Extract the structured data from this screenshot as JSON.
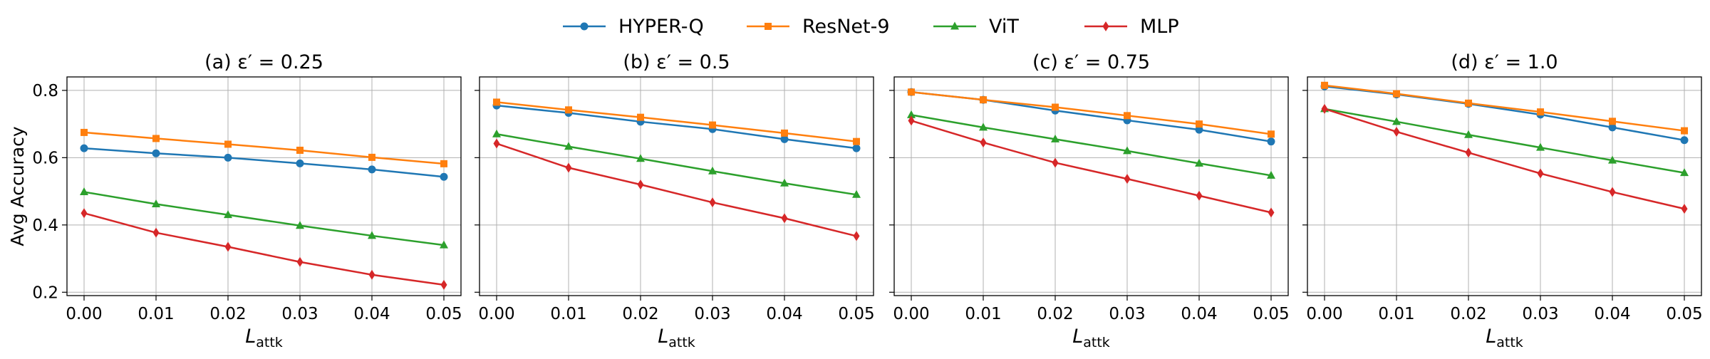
{
  "legend": [
    {
      "name": "HYPER-Q",
      "color": "#1f77b4",
      "marker": "circle"
    },
    {
      "name": "ResNet-9",
      "color": "#ff7f0e",
      "marker": "square"
    },
    {
      "name": "ViT",
      "color": "#2ca02c",
      "marker": "triangle"
    },
    {
      "name": "MLP",
      "color": "#d62728",
      "marker": "diamond"
    }
  ],
  "chart_data": [
    {
      "type": "line",
      "title": "(a) ε′ = 0.25",
      "xlabel": "L_attk",
      "ylabel": "Avg Accuracy",
      "x": [
        0.0,
        0.01,
        0.02,
        0.03,
        0.04,
        0.05
      ],
      "xticks": [
        "0.00",
        "0.01",
        "0.02",
        "0.03",
        "0.04",
        "0.05"
      ],
      "ylim": [
        0.19,
        0.84
      ],
      "yticks": [
        "0.2",
        "0.4",
        "0.6",
        "0.8"
      ],
      "grid": true,
      "series": [
        {
          "name": "HYPER-Q",
          "values": [
            0.628,
            0.613,
            0.6,
            0.583,
            0.565,
            0.543
          ]
        },
        {
          "name": "ResNet-9",
          "values": [
            0.675,
            0.657,
            0.64,
            0.622,
            0.601,
            0.582
          ]
        },
        {
          "name": "ViT",
          "values": [
            0.498,
            0.462,
            0.43,
            0.398,
            0.368,
            0.34
          ]
        },
        {
          "name": "MLP",
          "values": [
            0.435,
            0.377,
            0.335,
            0.29,
            0.252,
            0.222
          ]
        }
      ]
    },
    {
      "type": "line",
      "title": "(b) ε′ = 0.5",
      "xlabel": "L_attk",
      "ylabel": "",
      "x": [
        0.0,
        0.01,
        0.02,
        0.03,
        0.04,
        0.05
      ],
      "xticks": [
        "0.00",
        "0.01",
        "0.02",
        "0.03",
        "0.04",
        "0.05"
      ],
      "ylim": [
        0.19,
        0.84
      ],
      "yticks": [
        "0.2",
        "0.4",
        "0.6",
        "0.8"
      ],
      "grid": true,
      "series": [
        {
          "name": "HYPER-Q",
          "values": [
            0.755,
            0.733,
            0.707,
            0.685,
            0.655,
            0.628
          ]
        },
        {
          "name": "ResNet-9",
          "values": [
            0.765,
            0.742,
            0.72,
            0.697,
            0.673,
            0.648
          ]
        },
        {
          "name": "ViT",
          "values": [
            0.67,
            0.633,
            0.597,
            0.56,
            0.524,
            0.49
          ]
        },
        {
          "name": "MLP",
          "values": [
            0.642,
            0.57,
            0.52,
            0.467,
            0.42,
            0.367
          ]
        }
      ]
    },
    {
      "type": "line",
      "title": "(c) ε′ = 0.75",
      "xlabel": "L_attk",
      "ylabel": "",
      "x": [
        0.0,
        0.01,
        0.02,
        0.03,
        0.04,
        0.05
      ],
      "xticks": [
        "0.00",
        "0.01",
        "0.02",
        "0.03",
        "0.04",
        "0.05"
      ],
      "ylim": [
        0.19,
        0.84
      ],
      "yticks": [
        "0.2",
        "0.4",
        "0.6",
        "0.8"
      ],
      "grid": true,
      "series": [
        {
          "name": "HYPER-Q",
          "values": [
            0.795,
            0.772,
            0.74,
            0.711,
            0.683,
            0.648
          ]
        },
        {
          "name": "ResNet-9",
          "values": [
            0.795,
            0.772,
            0.75,
            0.725,
            0.7,
            0.67
          ]
        },
        {
          "name": "ViT",
          "values": [
            0.727,
            0.69,
            0.655,
            0.62,
            0.583,
            0.547
          ]
        },
        {
          "name": "MLP",
          "values": [
            0.71,
            0.645,
            0.585,
            0.537,
            0.487,
            0.437
          ]
        }
      ]
    },
    {
      "type": "line",
      "title": "(d) ε′ = 1.0",
      "xlabel": "L_attk",
      "ylabel": "",
      "x": [
        0.0,
        0.01,
        0.02,
        0.03,
        0.04,
        0.05
      ],
      "xticks": [
        "0.00",
        "0.01",
        "0.02",
        "0.03",
        "0.04",
        "0.05"
      ],
      "ylim": [
        0.19,
        0.84
      ],
      "yticks": [
        "0.2",
        "0.4",
        "0.6",
        "0.8"
      ],
      "grid": true,
      "series": [
        {
          "name": "HYPER-Q",
          "values": [
            0.812,
            0.788,
            0.76,
            0.728,
            0.69,
            0.652
          ]
        },
        {
          "name": "ResNet-9",
          "values": [
            0.815,
            0.79,
            0.762,
            0.736,
            0.708,
            0.68
          ]
        },
        {
          "name": "ViT",
          "values": [
            0.745,
            0.707,
            0.668,
            0.63,
            0.592,
            0.555
          ]
        },
        {
          "name": "MLP",
          "values": [
            0.745,
            0.677,
            0.615,
            0.553,
            0.498,
            0.448
          ]
        }
      ]
    }
  ]
}
